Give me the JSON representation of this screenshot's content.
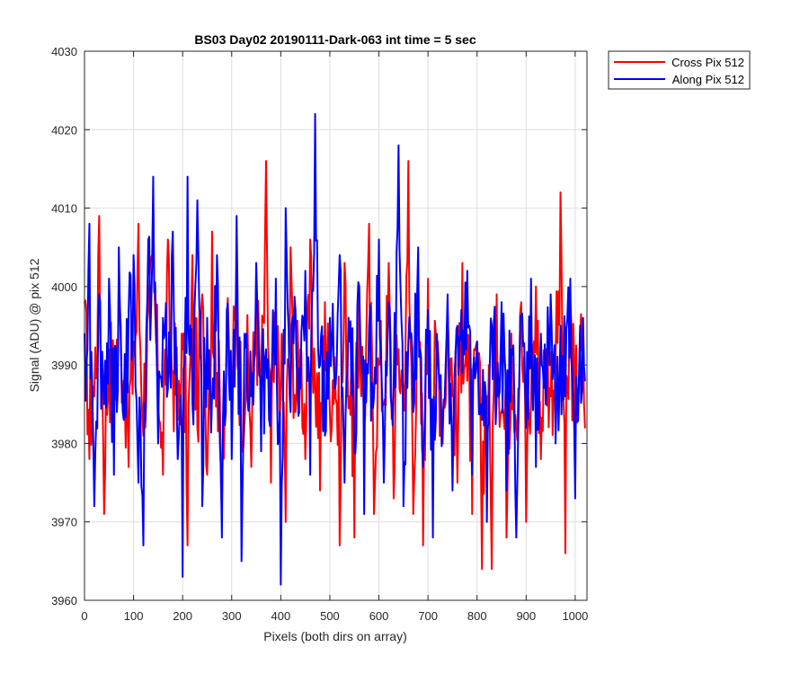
{
  "chart_data": {
    "type": "line",
    "title": "BS03 Day02 20190111-Dark-063 int time = 5 sec",
    "xlabel": "Pixels (both dirs on array)",
    "ylabel": "Signal (ADU) @ pix 512",
    "xlim": [
      0,
      1024
    ],
    "ylim": [
      3960,
      4030
    ],
    "xticks": [
      0,
      100,
      200,
      300,
      400,
      500,
      600,
      700,
      800,
      900,
      1000
    ],
    "yticks": [
      3960,
      3970,
      3980,
      3990,
      4000,
      4010,
      4020,
      4030
    ],
    "grid": true,
    "legend_position": "outside-top-right",
    "series": [
      {
        "name": "Cross Pix 512",
        "color": "#ff0000",
        "x": [
          0,
          10,
          20,
          30,
          40,
          50,
          60,
          70,
          80,
          90,
          100,
          110,
          120,
          130,
          140,
          150,
          160,
          170,
          180,
          190,
          200,
          210,
          220,
          230,
          240,
          250,
          260,
          270,
          280,
          290,
          300,
          310,
          320,
          330,
          340,
          350,
          360,
          370,
          380,
          390,
          400,
          410,
          420,
          430,
          440,
          450,
          460,
          470,
          480,
          490,
          500,
          510,
          520,
          530,
          540,
          550,
          560,
          570,
          580,
          590,
          600,
          610,
          620,
          630,
          640,
          650,
          660,
          670,
          680,
          690,
          700,
          710,
          720,
          730,
          740,
          750,
          760,
          770,
          780,
          790,
          800,
          810,
          820,
          830,
          840,
          850,
          860,
          870,
          880,
          890,
          900,
          910,
          920,
          930,
          940,
          950,
          960,
          970,
          980,
          990,
          1000,
          1010,
          1020
        ],
        "values": [
          3998,
          3978,
          3986,
          4009,
          3971,
          3992,
          3984,
          4002,
          3988,
          3977,
          3993,
          4008,
          3981,
          3997,
          4011,
          3985,
          3976,
          4006,
          3989,
          3983,
          3992,
          3967,
          4004,
          3982,
          3999,
          3976,
          4007,
          3989,
          3971,
          3994,
          3986,
          4003,
          3981,
          3990,
          3977,
          4002,
          3985,
          4016,
          3975,
          3993,
          3988,
          3970,
          4005,
          3984,
          3992,
          3978,
          4006,
          3987,
          3974,
          3998,
          3984,
          3991,
          3967,
          4003,
          3986,
          3968,
          3999,
          3982,
          4008,
          3971,
          3990,
          3985,
          4003,
          3973,
          3992,
          3986,
          4016,
          3971,
          3995,
          3967,
          4001,
          3984,
          3993,
          3980,
          3997,
          3986,
          3975,
          4003,
          3988,
          3971,
          3993,
          3964,
          3986,
          3964,
          3999,
          3984,
          3968,
          3994,
          3982,
          3998,
          3970,
          3985,
          4000,
          3978,
          3992,
          3986,
          3990,
          4012,
          3966,
          3998,
          3980,
          3994,
          3982
        ]
      },
      {
        "name": "Along Pix 512",
        "color": "#0000ff",
        "x": [
          0,
          10,
          20,
          30,
          40,
          50,
          60,
          70,
          80,
          90,
          100,
          110,
          120,
          130,
          140,
          150,
          160,
          170,
          180,
          190,
          200,
          210,
          220,
          230,
          240,
          250,
          260,
          270,
          280,
          290,
          300,
          310,
          320,
          330,
          340,
          350,
          360,
          370,
          380,
          390,
          400,
          410,
          420,
          430,
          440,
          450,
          460,
          470,
          480,
          490,
          500,
          510,
          520,
          530,
          540,
          550,
          560,
          570,
          580,
          590,
          600,
          610,
          620,
          630,
          640,
          650,
          660,
          670,
          680,
          690,
          700,
          710,
          720,
          730,
          740,
          750,
          760,
          770,
          780,
          790,
          800,
          810,
          820,
          830,
          840,
          850,
          860,
          870,
          880,
          890,
          900,
          910,
          920,
          930,
          940,
          950,
          960,
          970,
          980,
          990,
          1000,
          1010,
          1020
        ],
        "values": [
          3994,
          4008,
          3972,
          3999,
          3985,
          4001,
          3976,
          4005,
          3983,
          3997,
          4004,
          3975,
          3967,
          4006,
          4014,
          3980,
          3996,
          3987,
          4007,
          3978,
          3963,
          4014,
          3985,
          4011,
          3972,
          3996,
          3986,
          4004,
          3968,
          3997,
          3978,
          4009,
          3965,
          3994,
          3986,
          4003,
          3979,
          3992,
          3988,
          4001,
          3962,
          4010,
          3984,
          3997,
          3987,
          4002,
          3976,
          4022,
          3990,
          3981,
          3996,
          3987,
          4004,
          3975,
          3993,
          3979,
          4000,
          3971,
          3995,
          3986,
          4006,
          3975,
          3998,
          3987,
          4018,
          3972,
          3993,
          3984,
          4005,
          3977,
          3997,
          3968,
          3991,
          3983,
          3999,
          3974,
          3995,
          3989,
          4002,
          3976,
          3993,
          3983,
          3970,
          3995,
          3986,
          3998,
          3974,
          3992,
          3968,
          3996,
          3982,
          4001,
          3977,
          3994,
          3985,
          3999,
          3980,
          3995,
          3986,
          4001,
          3973,
          3995,
          3988
        ]
      }
    ]
  }
}
